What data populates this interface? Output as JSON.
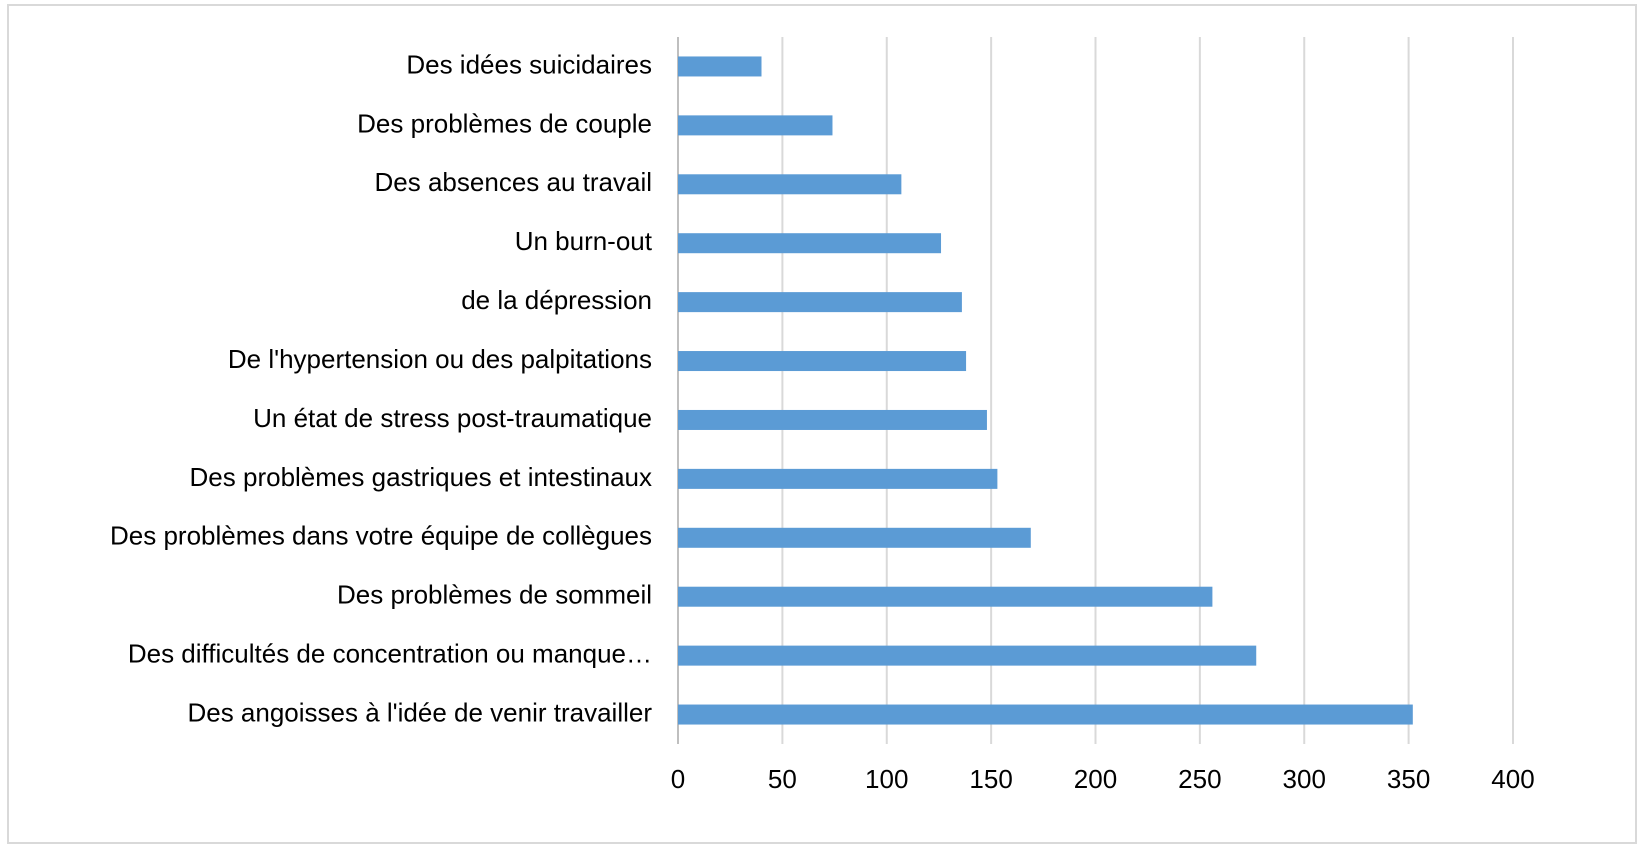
{
  "chart_data": {
    "type": "barh",
    "categories": [
      "Des idées suicidaires",
      "Des problèmes de couple",
      "Des absences au travail",
      "Un burn-out",
      "de la dépression",
      "De l'hypertension ou des palpitations",
      "Un état de stress post-traumatique",
      "Des problèmes gastriques et intestinaux",
      "Des problèmes dans votre équipe de collègues",
      "Des problèmes de sommeil",
      "Des difficultés de concentration ou manque…",
      "Des angoisses à l'idée de venir travailler"
    ],
    "values": [
      40,
      74,
      107,
      126,
      136,
      138,
      148,
      153,
      169,
      256,
      277,
      352
    ],
    "color": "#5b9bd5",
    "xlim": [
      0,
      400
    ],
    "xticks": [
      0,
      50,
      100,
      150,
      200,
      250,
      300,
      350,
      400
    ],
    "grid": true
  }
}
